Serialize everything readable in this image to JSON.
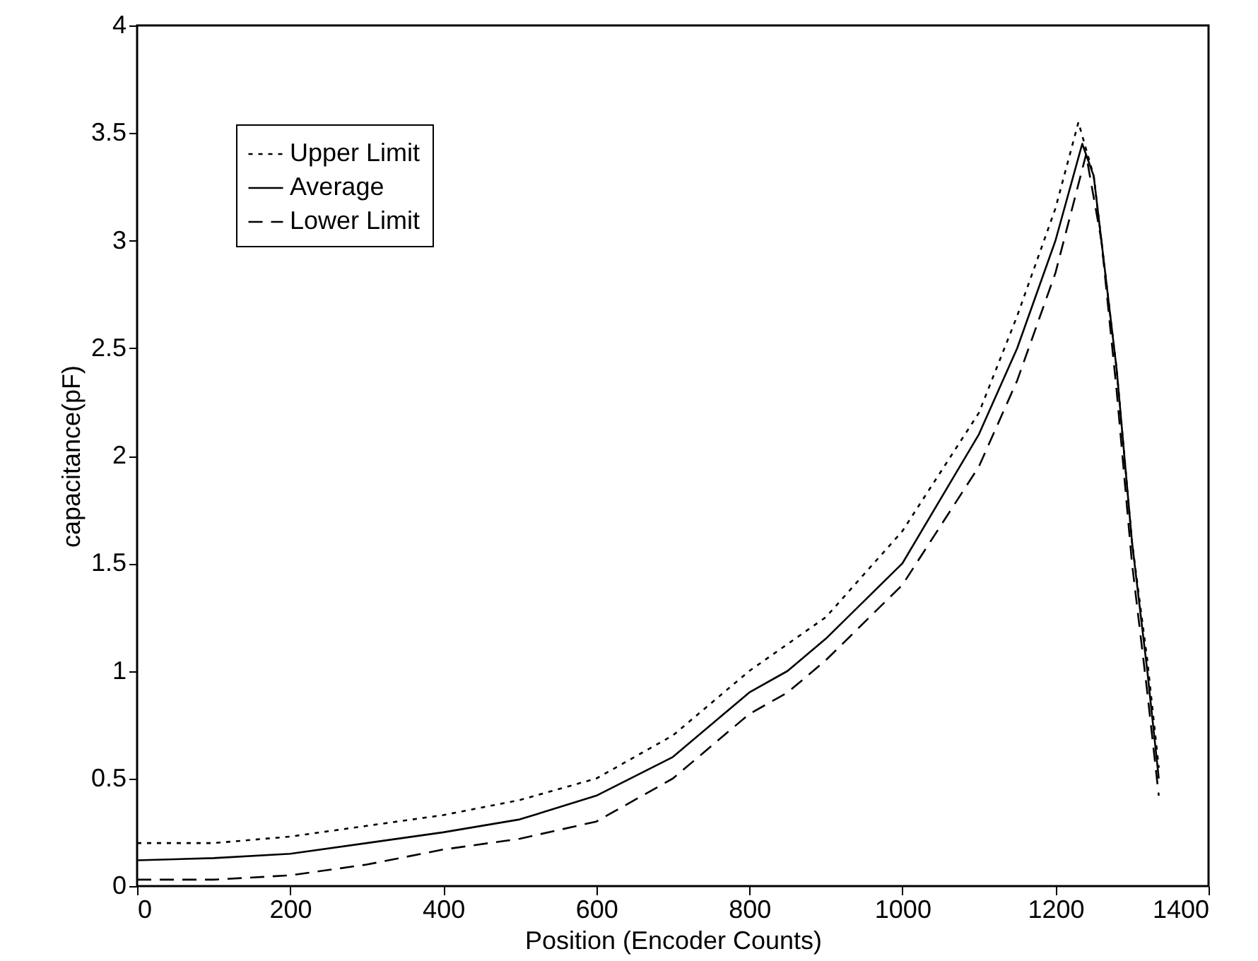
{
  "chart_data": {
    "type": "line",
    "xlabel": "Position (Encoder Counts)",
    "ylabel": "capacitance(pF)",
    "xlim": [
      0,
      1400
    ],
    "ylim": [
      0,
      4
    ],
    "xticks": [
      0,
      200,
      400,
      600,
      800,
      1000,
      1200,
      1400
    ],
    "yticks": [
      0,
      0.5,
      1,
      1.5,
      2,
      2.5,
      3,
      3.5,
      4
    ],
    "legend": "top left",
    "grid": false,
    "marker": "none",
    "series": [
      {
        "name": "Upper Limit",
        "color": "#000000",
        "line_style": "dotted",
        "x": [
          0,
          100,
          200,
          300,
          400,
          500,
          600,
          700,
          800,
          900,
          1000,
          1100,
          1150,
          1200,
          1230,
          1250,
          1280,
          1300,
          1320,
          1335
        ],
        "values": [
          0.2,
          0.2,
          0.23,
          0.28,
          0.33,
          0.4,
          0.5,
          0.7,
          1.0,
          1.25,
          1.65,
          2.2,
          2.65,
          3.15,
          3.55,
          3.3,
          2.4,
          1.6,
          1.05,
          0.55
        ]
      },
      {
        "name": "Average",
        "color": "#000000",
        "line_style": "solid",
        "x": [
          0,
          100,
          200,
          300,
          400,
          500,
          600,
          700,
          800,
          850,
          900,
          1000,
          1100,
          1150,
          1200,
          1235,
          1250,
          1280,
          1300,
          1320,
          1335
        ],
        "values": [
          0.12,
          0.13,
          0.15,
          0.2,
          0.25,
          0.31,
          0.42,
          0.6,
          0.9,
          1.0,
          1.15,
          1.5,
          2.1,
          2.5,
          3.0,
          3.45,
          3.3,
          2.4,
          1.6,
          1.0,
          0.5
        ]
      },
      {
        "name": "Lower Limit",
        "color": "#000000",
        "line_style": "dashed",
        "x": [
          0,
          100,
          200,
          300,
          400,
          500,
          600,
          700,
          800,
          850,
          900,
          1000,
          1100,
          1150,
          1200,
          1240,
          1260,
          1280,
          1300,
          1320,
          1335
        ],
        "values": [
          0.03,
          0.03,
          0.05,
          0.1,
          0.17,
          0.22,
          0.3,
          0.5,
          0.8,
          0.9,
          1.05,
          1.4,
          1.95,
          2.35,
          2.85,
          3.4,
          3.0,
          2.3,
          1.5,
          0.9,
          0.42
        ]
      }
    ]
  }
}
